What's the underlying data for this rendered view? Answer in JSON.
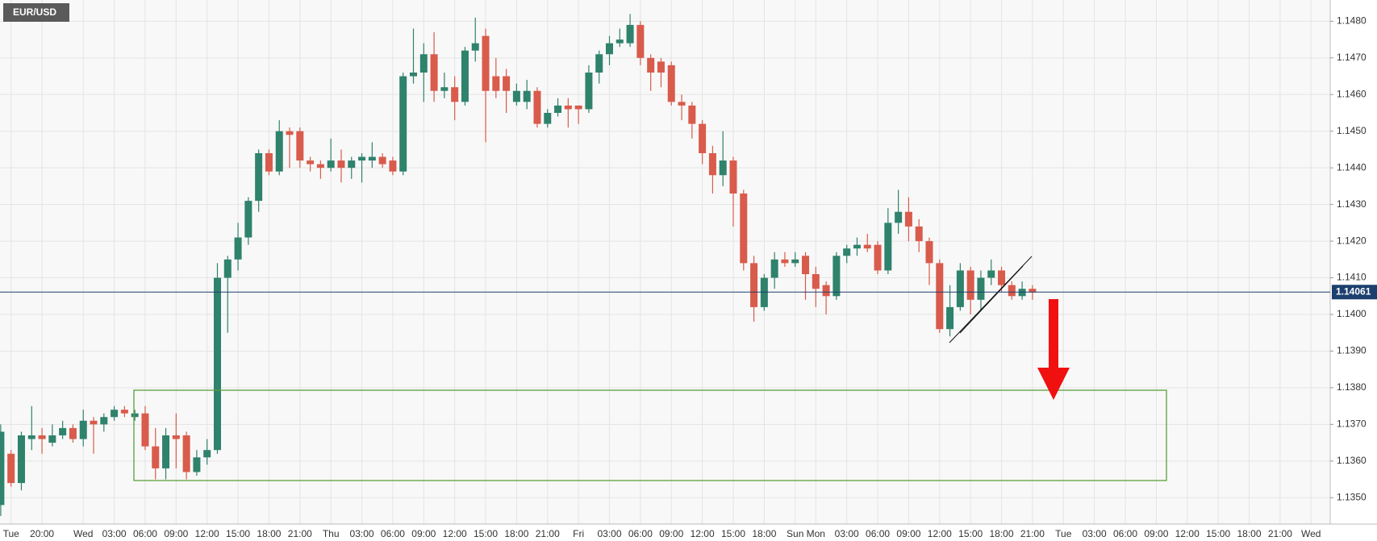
{
  "chart_data": {
    "type": "candlestick",
    "title": "EUR/USD",
    "categories": [
      null,
      "Tue",
      null,
      null,
      "20:00",
      null,
      null,
      null,
      "Wed",
      null,
      null,
      "03:00",
      null,
      null,
      "06:00",
      null,
      null,
      "09:00",
      null,
      null,
      "12:00",
      null,
      null,
      "15:00",
      null,
      null,
      "18:00",
      null,
      null,
      "21:00",
      null,
      null,
      "Thu",
      null,
      null,
      "03:00",
      null,
      null,
      "06:00",
      null,
      null,
      "09:00",
      null,
      null,
      "12:00",
      null,
      null,
      "15:00",
      null,
      null,
      "18:00",
      null,
      null,
      "21:00",
      null,
      null,
      "Fri",
      null,
      null,
      "03:00",
      null,
      null,
      "06:00",
      null,
      null,
      "09:00",
      null,
      null,
      "12:00",
      null,
      null,
      "15:00",
      null,
      null,
      "18:00",
      null,
      null,
      "Sun",
      null,
      "Mon",
      null,
      null,
      "03:00",
      null,
      null,
      "06:00",
      null,
      null,
      "09:00",
      null,
      null,
      "12:00",
      null,
      null,
      "15:00",
      null,
      null,
      "18:00",
      null,
      null,
      "21:00",
      null,
      null,
      "Tue",
      null,
      null,
      "03:00",
      null,
      null,
      "06:00",
      null,
      null,
      "09:00",
      null,
      null,
      "12:00",
      null,
      null,
      "15:00",
      null,
      null,
      "18:00",
      null,
      null,
      "21:00",
      null,
      null,
      "Wed"
    ],
    "open": [
      1.1348,
      1.1362,
      1.1354,
      1.1366,
      1.1367,
      1.1365,
      1.1367,
      1.1369,
      1.1366,
      1.1371,
      1.137,
      1.1372,
      1.1374,
      1.1372,
      1.1373,
      1.1364,
      1.1358,
      1.1367,
      1.1367,
      1.1357,
      1.1361,
      1.1363,
      1.141,
      1.1415,
      1.1421,
      1.1431,
      1.1444,
      1.1439,
      1.145,
      1.145,
      1.1442,
      1.1441,
      1.144,
      1.1442,
      1.144,
      1.1442,
      1.1442,
      1.1443,
      1.1442,
      1.1439,
      1.1465,
      1.1466,
      1.1471,
      1.1461,
      1.1462,
      1.1458,
      1.1472,
      1.1476,
      1.1465,
      1.1465,
      1.1458,
      1.1458,
      1.1461,
      1.1452,
      1.1455,
      1.1457,
      1.1457,
      1.1456,
      1.1466,
      1.1471,
      1.1474,
      1.1474,
      1.1479,
      1.147,
      1.1469,
      1.1468,
      1.1458,
      1.1457,
      1.1452,
      1.1444,
      1.1438,
      1.1442,
      1.1433,
      1.1414,
      1.1402,
      1.141,
      1.1415,
      1.1414,
      1.1416,
      1.1411,
      1.1408,
      1.1405,
      1.1416,
      1.1418,
      1.1419,
      1.1419,
      1.1412,
      1.1425,
      1.1428,
      1.1424,
      1.142,
      1.1414,
      1.1396,
      1.1402,
      1.1412,
      1.1404,
      1.141,
      1.1412,
      1.1408,
      1.1405,
      1.1407,
      null,
      null,
      null,
      null,
      null,
      null,
      null,
      null,
      null,
      null,
      null,
      null,
      null,
      null,
      null,
      null,
      null,
      null,
      null,
      null,
      null,
      null,
      null,
      null,
      null,
      null,
      null
    ],
    "high": [
      1.137,
      1.1363,
      1.1368,
      1.1375,
      1.1369,
      1.137,
      1.1371,
      1.137,
      1.1374,
      1.1372,
      1.1373,
      1.1375,
      1.1375,
      1.1374,
      1.1375,
      1.1369,
      1.1369,
      1.1373,
      1.1368,
      1.1363,
      1.1366,
      1.1414,
      1.1416,
      1.1425,
      1.1432,
      1.1445,
      1.1445,
      1.1453,
      1.1451,
      1.1451,
      1.1443,
      1.1442,
      1.1448,
      1.1445,
      1.1443,
      1.1444,
      1.1447,
      1.1444,
      1.1443,
      1.1466,
      1.1478,
      1.1474,
      1.1477,
      1.1466,
      1.1465,
      1.1473,
      1.1481,
      1.1478,
      1.147,
      1.1467,
      1.1463,
      1.1464,
      1.1462,
      1.1456,
      1.1459,
      1.1459,
      1.1457,
      1.1468,
      1.1472,
      1.1476,
      1.1478,
      1.1482,
      1.148,
      1.1471,
      1.147,
      1.1469,
      1.146,
      1.1458,
      1.1453,
      1.1446,
      1.145,
      1.1443,
      1.1434,
      1.1416,
      1.1411,
      1.1417,
      1.1417,
      1.1417,
      1.1417,
      1.1413,
      1.1409,
      1.1417,
      1.1419,
      1.1421,
      1.1422,
      1.142,
      1.1429,
      1.1434,
      1.1432,
      1.1426,
      1.1421,
      1.1415,
      1.1408,
      1.1414,
      1.1413,
      1.1412,
      1.1415,
      1.1413,
      1.1409,
      1.1409,
      1.1408,
      null,
      null,
      null,
      null,
      null,
      null,
      null,
      null,
      null,
      null,
      null,
      null,
      null,
      null,
      null,
      null,
      null,
      null,
      null,
      null,
      null,
      null,
      null,
      null,
      null,
      null,
      null
    ],
    "low": [
      1.1345,
      1.1353,
      1.1352,
      1.1363,
      1.1362,
      1.1364,
      1.1366,
      1.1365,
      1.1364,
      1.1362,
      1.1368,
      1.1371,
      1.1372,
      1.1371,
      1.1363,
      1.1355,
      1.1355,
      1.1358,
      1.1355,
      1.1356,
      1.1359,
      1.1362,
      1.1395,
      1.1412,
      1.1419,
      1.1428,
      1.1438,
      1.1438,
      1.144,
      1.144,
      1.1439,
      1.1437,
      1.1439,
      1.1436,
      1.1437,
      1.1436,
      1.144,
      1.144,
      1.1438,
      1.1438,
      1.1463,
      1.1458,
      1.1458,
      1.1459,
      1.1453,
      1.1457,
      1.1469,
      1.1447,
      1.1459,
      1.1455,
      1.1457,
      1.1456,
      1.1451,
      1.1451,
      1.1454,
      1.1451,
      1.1452,
      1.1455,
      1.1463,
      1.1468,
      1.1473,
      1.1473,
      1.1468,
      1.1461,
      1.1462,
      1.1457,
      1.1453,
      1.1448,
      1.1441,
      1.1433,
      1.1435,
      1.1424,
      1.1412,
      1.1398,
      1.1401,
      1.1407,
      1.1413,
      1.1413,
      1.1404,
      1.1402,
      1.14,
      1.1404,
      1.1414,
      1.1416,
      1.1417,
      1.1411,
      1.1411,
      1.1422,
      1.142,
      1.1417,
      1.1408,
      1.1395,
      1.1394,
      1.1401,
      1.14,
      1.1401,
      1.1408,
      1.1406,
      1.1404,
      1.1404,
      1.1404,
      null,
      null,
      null,
      null,
      null,
      null,
      null,
      null,
      null,
      null,
      null,
      null,
      null,
      null,
      null,
      null,
      null,
      null,
      null,
      null,
      null,
      null,
      null,
      null,
      null,
      null,
      null
    ],
    "close": [
      1.1368,
      1.1354,
      1.1367,
      1.1367,
      1.1366,
      1.1367,
      1.1369,
      1.1366,
      1.1371,
      1.137,
      1.1372,
      1.1374,
      1.1373,
      1.1373,
      1.1364,
      1.1358,
      1.1367,
      1.1366,
      1.1357,
      1.1361,
      1.1363,
      1.141,
      1.1415,
      1.1421,
      1.1431,
      1.1444,
      1.1439,
      1.145,
      1.1449,
      1.1442,
      1.1441,
      1.144,
      1.1442,
      1.144,
      1.1442,
      1.1443,
      1.1443,
      1.1441,
      1.1439,
      1.1465,
      1.1466,
      1.1471,
      1.1461,
      1.1462,
      1.1458,
      1.1472,
      1.1474,
      1.1461,
      1.1461,
      1.1461,
      1.1461,
      1.1461,
      1.1452,
      1.1455,
      1.1457,
      1.1456,
      1.1456,
      1.1466,
      1.1471,
      1.1474,
      1.1475,
      1.1479,
      1.147,
      1.1466,
      1.1466,
      1.1458,
      1.1457,
      1.1452,
      1.1444,
      1.1438,
      1.1442,
      1.1433,
      1.1414,
      1.1402,
      1.141,
      1.1415,
      1.1414,
      1.1415,
      1.1411,
      1.1407,
      1.1405,
      1.1416,
      1.1418,
      1.1419,
      1.1418,
      1.1412,
      1.1425,
      1.1428,
      1.1424,
      1.142,
      1.1414,
      1.1396,
      1.1402,
      1.1412,
      1.1404,
      1.141,
      1.1412,
      1.1408,
      1.1405,
      1.1407,
      1.1406,
      null,
      null,
      null,
      null,
      null,
      null,
      null,
      null,
      null,
      null,
      null,
      null,
      null,
      null,
      null,
      null,
      null,
      null,
      null,
      null,
      null,
      null,
      null,
      null,
      null,
      null,
      null
    ],
    "up_color": "#2f826c",
    "down_color": "#d95b4b",
    "current_price": 1.14061,
    "current_price_color": "#1c3f6e",
    "ylim": [
      1.13428,
      1.14858
    ],
    "yticks": [
      {
        "value": 1.135,
        "label": "1.1350"
      },
      {
        "value": 1.136,
        "label": "1.1360"
      },
      {
        "value": 1.137,
        "label": "1.1370"
      },
      {
        "value": 1.138,
        "label": "1.1380"
      },
      {
        "value": 1.139,
        "label": "1.1390"
      },
      {
        "value": 1.14,
        "label": "1.1400"
      },
      {
        "value": 1.141,
        "label": "1.1410"
      },
      {
        "value": 1.142,
        "label": "1.1420"
      },
      {
        "value": 1.143,
        "label": "1.1430"
      },
      {
        "value": 1.144,
        "label": "1.1440"
      },
      {
        "value": 1.145,
        "label": "1.1450"
      },
      {
        "value": 1.146,
        "label": "1.1460"
      },
      {
        "value": 1.147,
        "label": "1.1470"
      },
      {
        "value": 1.148,
        "label": "1.1480"
      }
    ],
    "grid": true
  }
}
